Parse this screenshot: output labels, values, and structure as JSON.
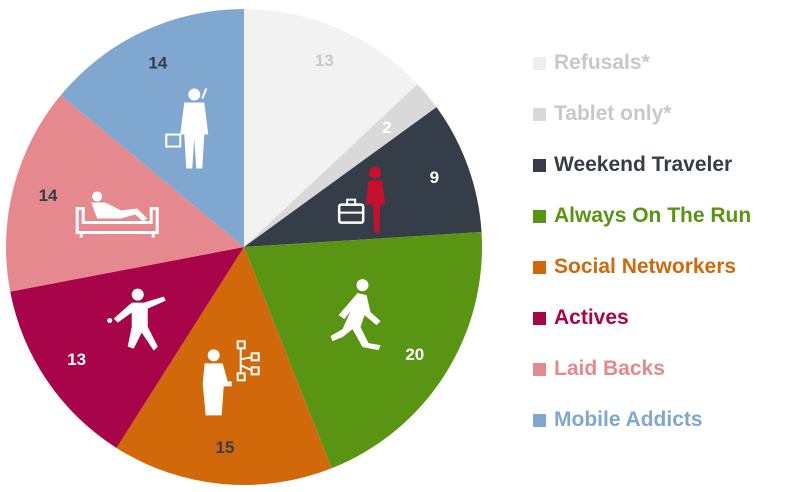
{
  "chart_data": {
    "type": "pie",
    "start_angle_deg": 0,
    "direction": "clockwise",
    "slices": [
      {
        "label": "Refusals*",
        "value": 13,
        "color": "#f2f2f2",
        "label_color": "#c8c8c8",
        "value_color": "#c8c8c8",
        "icon": "none"
      },
      {
        "label": "Tablet only*",
        "value": 2,
        "color": "#d9d9d9",
        "label_color": "#c8c8c8",
        "value_color": "#ffffff",
        "icon": "none"
      },
      {
        "label": "Weekend Traveler",
        "value": 9,
        "color": "#353e48",
        "label_color": "#353e48",
        "value_color": "#ffffff",
        "icon": "traveler-with-suitcase-icon"
      },
      {
        "label": "Always On The Run",
        "value": 20,
        "color": "#5a9413",
        "label_color": "#5a9413",
        "value_color": "#ffffff",
        "icon": "runner-icon"
      },
      {
        "label": "Social Networkers",
        "value": 15,
        "color": "#d1690a",
        "label_color": "#d1690a",
        "value_color": "#353e48",
        "icon": "person-network-icon"
      },
      {
        "label": "Actives",
        "value": 13,
        "color": "#a7044a",
        "label_color": "#a7044a",
        "value_color": "#ffffff",
        "icon": "active-person-icon"
      },
      {
        "label": "Laid Backs",
        "value": 14,
        "color": "#e6898f",
        "label_color": "#e6898f",
        "value_color": "#353e48",
        "icon": "person-on-sofa-icon"
      },
      {
        "label": "Mobile Addicts",
        "value": 14,
        "color": "#7fa7d0",
        "label_color": "#7fa7d0",
        "value_color": "#353e48",
        "icon": "businessman-on-phone-icon"
      }
    ],
    "legend_placement": "right"
  }
}
